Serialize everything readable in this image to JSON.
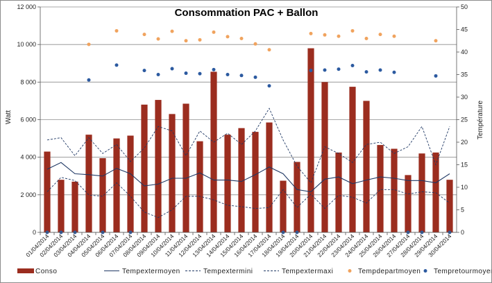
{
  "chart_data": {
    "type": "bar",
    "title": "Consommation PAC + Ballon",
    "ylabel": "Watt",
    "y2label": "Température",
    "ylim": [
      0,
      12000
    ],
    "y2lim": [
      0,
      50
    ],
    "yticks": [
      "0",
      "2 000",
      "4 000",
      "6 000",
      "8 000",
      "10 000",
      "12 000"
    ],
    "y2ticks": [
      "0",
      "5",
      "10",
      "15",
      "20",
      "25",
      "30",
      "35",
      "40",
      "45",
      "50"
    ],
    "grid": true,
    "legend_position": "bottom",
    "colors": {
      "bar": "#9b2d1f",
      "moyen": "#1f3864",
      "mini": "#1f3864",
      "maxi": "#1f3864",
      "depart": "#f0a35e",
      "retour": "#2c5aa0",
      "grid": "#8c8c8c"
    },
    "categories": [
      "01/04/2014",
      "02/04/2014",
      "03/04/2014",
      "04/04/2014",
      "05/04/2014",
      "06/04/2014",
      "07/04/2014",
      "08/04/2014",
      "09/04/2014",
      "10/04/2014",
      "11/04/2014",
      "12/04/2014",
      "13/04/2014",
      "14/04/2014",
      "15/04/2014",
      "16/04/2014",
      "17/04/2014",
      "18/04/2014",
      "19/04/2014",
      "20/04/2014",
      "21/04/2014",
      "22/04/2014",
      "23/04/2014",
      "24/04/2014",
      "25/04/2014",
      "26/04/2014",
      "27/04/2014",
      "28/04/2014",
      "29/04/2014",
      "30/04/2014"
    ],
    "series": [
      {
        "name": "Conso",
        "kind": "bar",
        "axis": "left",
        "values": [
          4300,
          2800,
          2700,
          5200,
          3950,
          5000,
          5150,
          6800,
          7050,
          6300,
          6850,
          4850,
          8550,
          5200,
          5550,
          5350,
          5850,
          2750,
          3750,
          9800,
          8000,
          4250,
          7750,
          7000,
          4650,
          4450,
          3050,
          4200,
          4250,
          2800
        ]
      },
      {
        "name": "Tempextermoyen",
        "kind": "line",
        "style": "solid",
        "axis": "right",
        "values": [
          14.0,
          15.5,
          13.0,
          12.8,
          12.5,
          14.2,
          13.0,
          10.3,
          10.7,
          12.0,
          12.0,
          13.2,
          11.6,
          11.6,
          11.3,
          12.8,
          14.5,
          13.0,
          9.5,
          9.0,
          11.8,
          12.3,
          10.8,
          11.6,
          12.3,
          12.0,
          11.5,
          11.5,
          11.0,
          13.0
        ]
      },
      {
        "name": "Tempextermini",
        "kind": "line",
        "style": "dash",
        "axis": "right",
        "values": [
          9.0,
          12.2,
          11.5,
          8.3,
          8.0,
          11.0,
          8.0,
          4.5,
          3.3,
          5.0,
          8.0,
          8.0,
          7.2,
          6.0,
          5.7,
          5.3,
          5.5,
          9.5,
          5.5,
          8.5,
          5.3,
          8.2,
          7.8,
          6.5,
          9.5,
          9.5,
          8.5,
          9.0,
          8.8,
          6.5
        ]
      },
      {
        "name": "Tempextermaxi",
        "kind": "line",
        "style": "dash",
        "axis": "right",
        "values": [
          20.5,
          21.0,
          17.0,
          21.0,
          17.5,
          19.5,
          15.7,
          18.7,
          23.5,
          22.5,
          17.0,
          22.5,
          20.0,
          22.0,
          19.5,
          22.5,
          27.5,
          20.5,
          14.7,
          11.0,
          19.0,
          17.5,
          15.5,
          19.5,
          20.0,
          17.5,
          19.0,
          23.5,
          15.0,
          23.5
        ]
      },
      {
        "name": "Tempdepartmoyen",
        "kind": "scatter",
        "axis": "right",
        "values": [
          null,
          null,
          null,
          41.7,
          null,
          44.7,
          null,
          43.9,
          42.9,
          44.6,
          42.5,
          42.7,
          44.4,
          43.4,
          43.0,
          41.8,
          40.5,
          null,
          null,
          44.1,
          43.8,
          43.5,
          44.7,
          43.0,
          43.9,
          43.5,
          null,
          null,
          42.5,
          null
        ]
      },
      {
        "name": "Tempretourmoyen",
        "kind": "scatter",
        "axis": "right",
        "values": [
          0,
          0,
          0,
          33.8,
          0,
          37.1,
          0,
          35.9,
          35.0,
          36.3,
          35.3,
          35.2,
          36.1,
          35.0,
          34.8,
          34.4,
          32.5,
          0,
          0,
          35.9,
          36.0,
          36.2,
          37.0,
          35.6,
          36.0,
          35.5,
          0,
          0,
          34.7,
          0
        ]
      }
    ]
  }
}
